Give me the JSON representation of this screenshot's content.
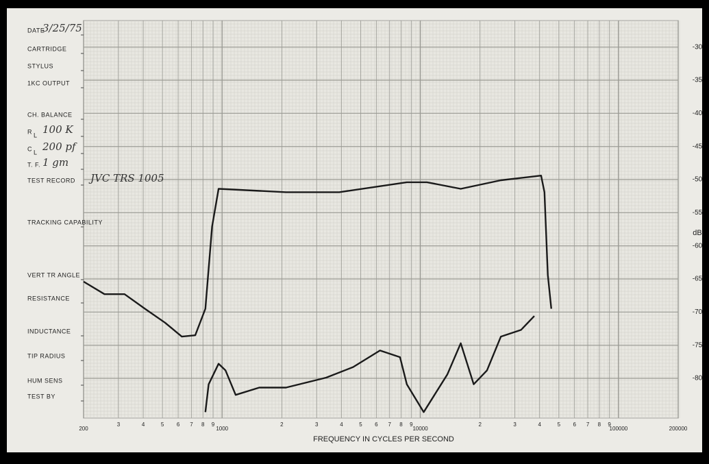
{
  "chart_data": {
    "type": "line",
    "x_label": "FREQUENCY IN CYCLES PER SECOND",
    "y_label": "dB",
    "log_x": true,
    "grid": true,
    "xlim": [
      200,
      200000
    ],
    "ylim": [
      -86,
      -26
    ],
    "xticks": [
      200,
      {
        "value": 300,
        "label": "3"
      },
      {
        "value": 400,
        "label": "4"
      },
      {
        "value": 500,
        "label": "5"
      },
      {
        "value": 600,
        "label": "6"
      },
      {
        "value": 700,
        "label": "7"
      },
      {
        "value": 800,
        "label": "8"
      },
      {
        "value": 900,
        "label": "9"
      },
      1000,
      {
        "value": 2000,
        "label": "2"
      },
      {
        "value": 3000,
        "label": "3"
      },
      {
        "value": 4000,
        "label": "4"
      },
      {
        "value": 5000,
        "label": "5"
      },
      {
        "value": 6000,
        "label": "6"
      },
      {
        "value": 7000,
        "label": "7"
      },
      {
        "value": 8000,
        "label": "8"
      },
      {
        "value": 9000,
        "label": "9"
      },
      10000,
      {
        "value": 20000,
        "label": "2"
      },
      {
        "value": 30000,
        "label": "3"
      },
      {
        "value": 40000,
        "label": "4"
      },
      {
        "value": 50000,
        "label": "5"
      },
      {
        "value": 60000,
        "label": "6"
      },
      {
        "value": 70000,
        "label": "7"
      },
      {
        "value": 80000,
        "label": "8"
      },
      {
        "value": 90000,
        "label": "9"
      },
      100000,
      200000
    ],
    "yticks": [
      -30,
      -35,
      -40,
      -45,
      -50,
      -55,
      -60,
      -65,
      -70,
      -75,
      -80
    ],
    "series": [
      {
        "color": "#1a1a1a",
        "x": [
          200,
          255,
          322,
          408,
          515,
          626,
          732,
          823,
          890,
          960,
          2100,
          3900,
          8550,
          10800,
          16000,
          25500,
          40700,
          42300,
          44000,
          45800
        ],
        "values": [
          -65.4,
          -67.3,
          -67.3,
          -69.5,
          -71.6,
          -73.7,
          -73.5,
          -69.5,
          -57.1,
          -51.4,
          -51.9,
          -51.9,
          -50.4,
          -50.4,
          -51.4,
          -50.1,
          -49.4,
          -51.9,
          -64.4,
          -69.5
        ]
      },
      {
        "color": "#1a1a1a",
        "x": [
          823,
          855,
          960,
          1040,
          1170,
          1540,
          2100,
          3350,
          4580,
          6260,
          7900,
          8550,
          10400,
          13700,
          16000,
          18600,
          21700,
          25500,
          32200,
          37600
        ],
        "values": [
          -85.1,
          -80.9,
          -77.8,
          -78.8,
          -82.5,
          -81.4,
          -81.4,
          -79.9,
          -78.3,
          -75.8,
          -76.8,
          -80.9,
          -85.1,
          -79.4,
          -74.7,
          -80.9,
          -78.8,
          -73.7,
          -72.7,
          -70.6
        ]
      }
    ]
  },
  "form_fields": [
    {
      "label": "DATE",
      "value": "3/25/75"
    },
    {
      "label": "CARTRIDGE"
    },
    {
      "label": "STYLUS"
    },
    {
      "label": "1KC OUTPUT"
    },
    {
      "label": "CH. BALANCE"
    },
    {
      "label": "R",
      "sub": "L",
      "value": "100 K"
    },
    {
      "label": "C",
      "sub": "L",
      "value": "200 pf"
    },
    {
      "label": "T. F.",
      "value": "1 gm"
    },
    {
      "label": "TEST RECORD",
      "value": "JVC TRS 1005"
    },
    {
      "label": "TRACKING CAPABILITY"
    },
    {
      "label": "VERT TR ANGLE"
    },
    {
      "label": "RESISTANCE"
    },
    {
      "label": "INDUCTANCE"
    },
    {
      "label": "TIP RADIUS"
    },
    {
      "label": "HUM SENS"
    },
    {
      "label": "TEST BY"
    }
  ]
}
